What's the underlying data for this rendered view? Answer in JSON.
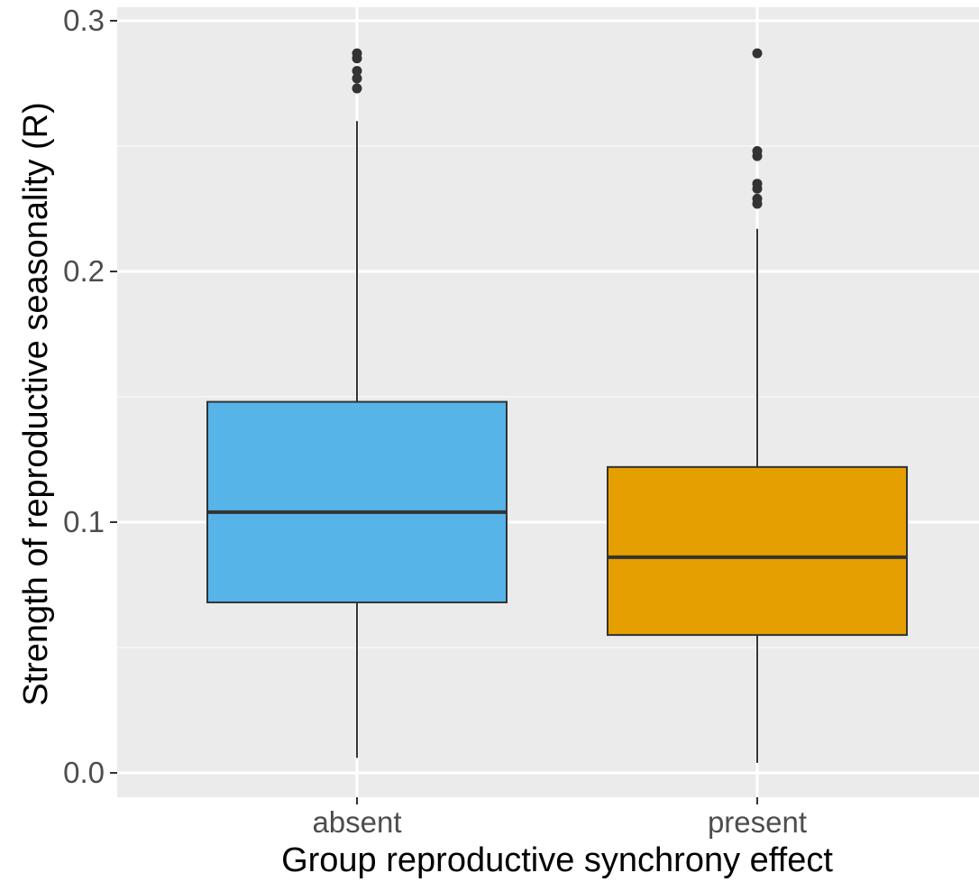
{
  "chart_data": {
    "type": "boxplot",
    "title": "",
    "xlabel": "Group reproductive synchrony effect",
    "ylabel": "Strength of reproductive seasonality (R)",
    "ylim": [
      -0.01,
      0.3
    ],
    "yticks": [
      0.0,
      0.1,
      0.2,
      0.3
    ],
    "ytick_labels": [
      "0.0",
      "0.1",
      "0.2",
      "0.3"
    ],
    "y_minor_gridlines": [
      0.05,
      0.15,
      0.25
    ],
    "grid": true,
    "legend": "none",
    "categories": [
      "absent",
      "present"
    ],
    "boxes": [
      {
        "category": "absent",
        "color": "#56B4E9",
        "whisker_low": 0.006,
        "q1": 0.068,
        "median": 0.104,
        "q3": 0.148,
        "whisker_high": 0.26,
        "outliers": [
          0.273,
          0.277,
          0.28,
          0.285,
          0.287
        ]
      },
      {
        "category": "present",
        "color": "#E69F00",
        "whisker_low": 0.004,
        "q1": 0.055,
        "median": 0.086,
        "q3": 0.122,
        "whisker_high": 0.217,
        "outliers": [
          0.227,
          0.229,
          0.233,
          0.235,
          0.246,
          0.248,
          0.287
        ]
      }
    ]
  },
  "style": {
    "panel_bg": "#EBEBEB",
    "grid_major": "#FFFFFF",
    "grid_minor": "#F7F7F7",
    "box_outline": "#333333",
    "median_color": "#333333",
    "outlier_color": "#333333"
  }
}
